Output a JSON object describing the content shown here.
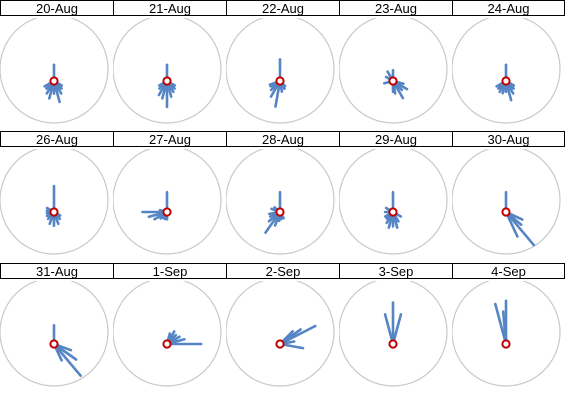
{
  "chart_data": {
    "type": "radial-star",
    "description_note": "",
    "colors": {
      "ray": "#5585c4",
      "circle": "#c9c9c9",
      "center_ring": "#c00000"
    },
    "panels": [
      {
        "title": "20-Aug",
        "rays": [
          [
            0,
            0.45
          ],
          [
            165,
            0.6
          ],
          [
            150,
            0.4
          ],
          [
            210,
            0.4
          ],
          [
            195,
            0.5
          ],
          [
            225,
            0.3
          ],
          [
            120,
            0.25
          ],
          [
            240,
            0.3
          ],
          [
            180,
            0.35
          ],
          [
            135,
            0.3
          ]
        ]
      },
      {
        "title": "21-Aug",
        "rays": [
          [
            0,
            0.45
          ],
          [
            180,
            0.72
          ],
          [
            195,
            0.5
          ],
          [
            210,
            0.45
          ],
          [
            165,
            0.45
          ],
          [
            150,
            0.35
          ],
          [
            225,
            0.3
          ],
          [
            135,
            0.3
          ],
          [
            120,
            0.25
          ],
          [
            240,
            0.25
          ]
        ]
      },
      {
        "title": "22-Aug",
        "rays": [
          [
            0,
            0.6
          ],
          [
            190,
            0.72
          ],
          [
            210,
            0.5
          ],
          [
            225,
            0.35
          ],
          [
            240,
            0.3
          ],
          [
            170,
            0.3
          ],
          [
            150,
            0.25
          ],
          [
            250,
            0.3
          ],
          [
            230,
            0.25
          ],
          [
            135,
            0.2
          ]
        ]
      },
      {
        "title": "23-Aug",
        "rays": [
          [
            0,
            0.3
          ],
          [
            330,
            0.3
          ],
          [
            150,
            0.55
          ],
          [
            120,
            0.45
          ],
          [
            105,
            0.3
          ],
          [
            170,
            0.35
          ],
          [
            255,
            0.25
          ],
          [
            135,
            0.35
          ],
          [
            300,
            0.22
          ],
          [
            180,
            0.3
          ]
        ]
      },
      {
        "title": "24-Aug",
        "rays": [
          [
            0,
            0.45
          ],
          [
            165,
            0.55
          ],
          [
            150,
            0.4
          ],
          [
            210,
            0.35
          ],
          [
            225,
            0.3
          ],
          [
            240,
            0.3
          ],
          [
            195,
            0.35
          ],
          [
            120,
            0.25
          ],
          [
            135,
            0.3
          ],
          [
            180,
            0.3
          ]
        ]
      },
      {
        "title": "26-Aug",
        "rays": [
          [
            0,
            0.72
          ],
          [
            180,
            0.38
          ],
          [
            200,
            0.35
          ],
          [
            160,
            0.35
          ],
          [
            220,
            0.25
          ],
          [
            240,
            0.22
          ],
          [
            140,
            0.25
          ],
          [
            260,
            0.2
          ],
          [
            280,
            0.2
          ],
          [
            300,
            0.22
          ],
          [
            120,
            0.2
          ]
        ]
      },
      {
        "title": "27-Aug",
        "rays": [
          [
            0,
            0.55
          ],
          [
            270,
            0.68
          ],
          [
            255,
            0.52
          ],
          [
            240,
            0.4
          ],
          [
            225,
            0.25
          ],
          [
            210,
            0.2
          ],
          [
            285,
            0.2
          ],
          [
            195,
            0.2
          ],
          [
            180,
            0.2
          ]
        ]
      },
      {
        "title": "28-Aug",
        "rays": [
          [
            0,
            0.55
          ],
          [
            215,
            0.7
          ],
          [
            200,
            0.4
          ],
          [
            230,
            0.4
          ],
          [
            245,
            0.3
          ],
          [
            260,
            0.3
          ],
          [
            290,
            0.25
          ],
          [
            185,
            0.25
          ],
          [
            170,
            0.2
          ],
          [
            150,
            0.2
          ],
          [
            310,
            0.2
          ]
        ]
      },
      {
        "title": "29-Aug",
        "rays": [
          [
            0,
            0.55
          ],
          [
            165,
            0.45
          ],
          [
            195,
            0.45
          ],
          [
            180,
            0.4
          ],
          [
            210,
            0.35
          ],
          [
            150,
            0.3
          ],
          [
            225,
            0.25
          ],
          [
            240,
            0.25
          ],
          [
            120,
            0.25
          ],
          [
            270,
            0.22
          ],
          [
            300,
            0.22
          ]
        ]
      },
      {
        "title": "30-Aug",
        "rays": [
          [
            0,
            0.55
          ],
          [
            140,
            1.2
          ],
          [
            155,
            0.75
          ],
          [
            115,
            0.5
          ],
          [
            130,
            0.55
          ]
        ]
      },
      {
        "title": "31-Aug",
        "rays": [
          [
            0,
            0.52
          ],
          [
            140,
            1.15
          ],
          [
            125,
            0.75
          ],
          [
            110,
            0.5
          ],
          [
            155,
            0.5
          ]
        ]
      },
      {
        "title": "1-Sep",
        "rays": [
          [
            90,
            0.95
          ],
          [
            75,
            0.5
          ],
          [
            60,
            0.4
          ],
          [
            45,
            0.35
          ],
          [
            30,
            0.4
          ],
          [
            15,
            0.3
          ]
        ]
      },
      {
        "title": "2-Sep",
        "rays": [
          [
            63,
            1.1
          ],
          [
            55,
            0.7
          ],
          [
            45,
            0.5
          ],
          [
            100,
            0.65
          ],
          [
            80,
            0.4
          ]
        ]
      },
      {
        "title": "3-Sep",
        "rays": [
          [
            0,
            1.15
          ],
          [
            345,
            0.85
          ],
          [
            15,
            0.85
          ]
        ]
      },
      {
        "title": "4-Sep",
        "rays": [
          [
            0,
            1.2
          ],
          [
            345,
            1.15
          ],
          [
            355,
            0.9
          ]
        ]
      }
    ]
  }
}
